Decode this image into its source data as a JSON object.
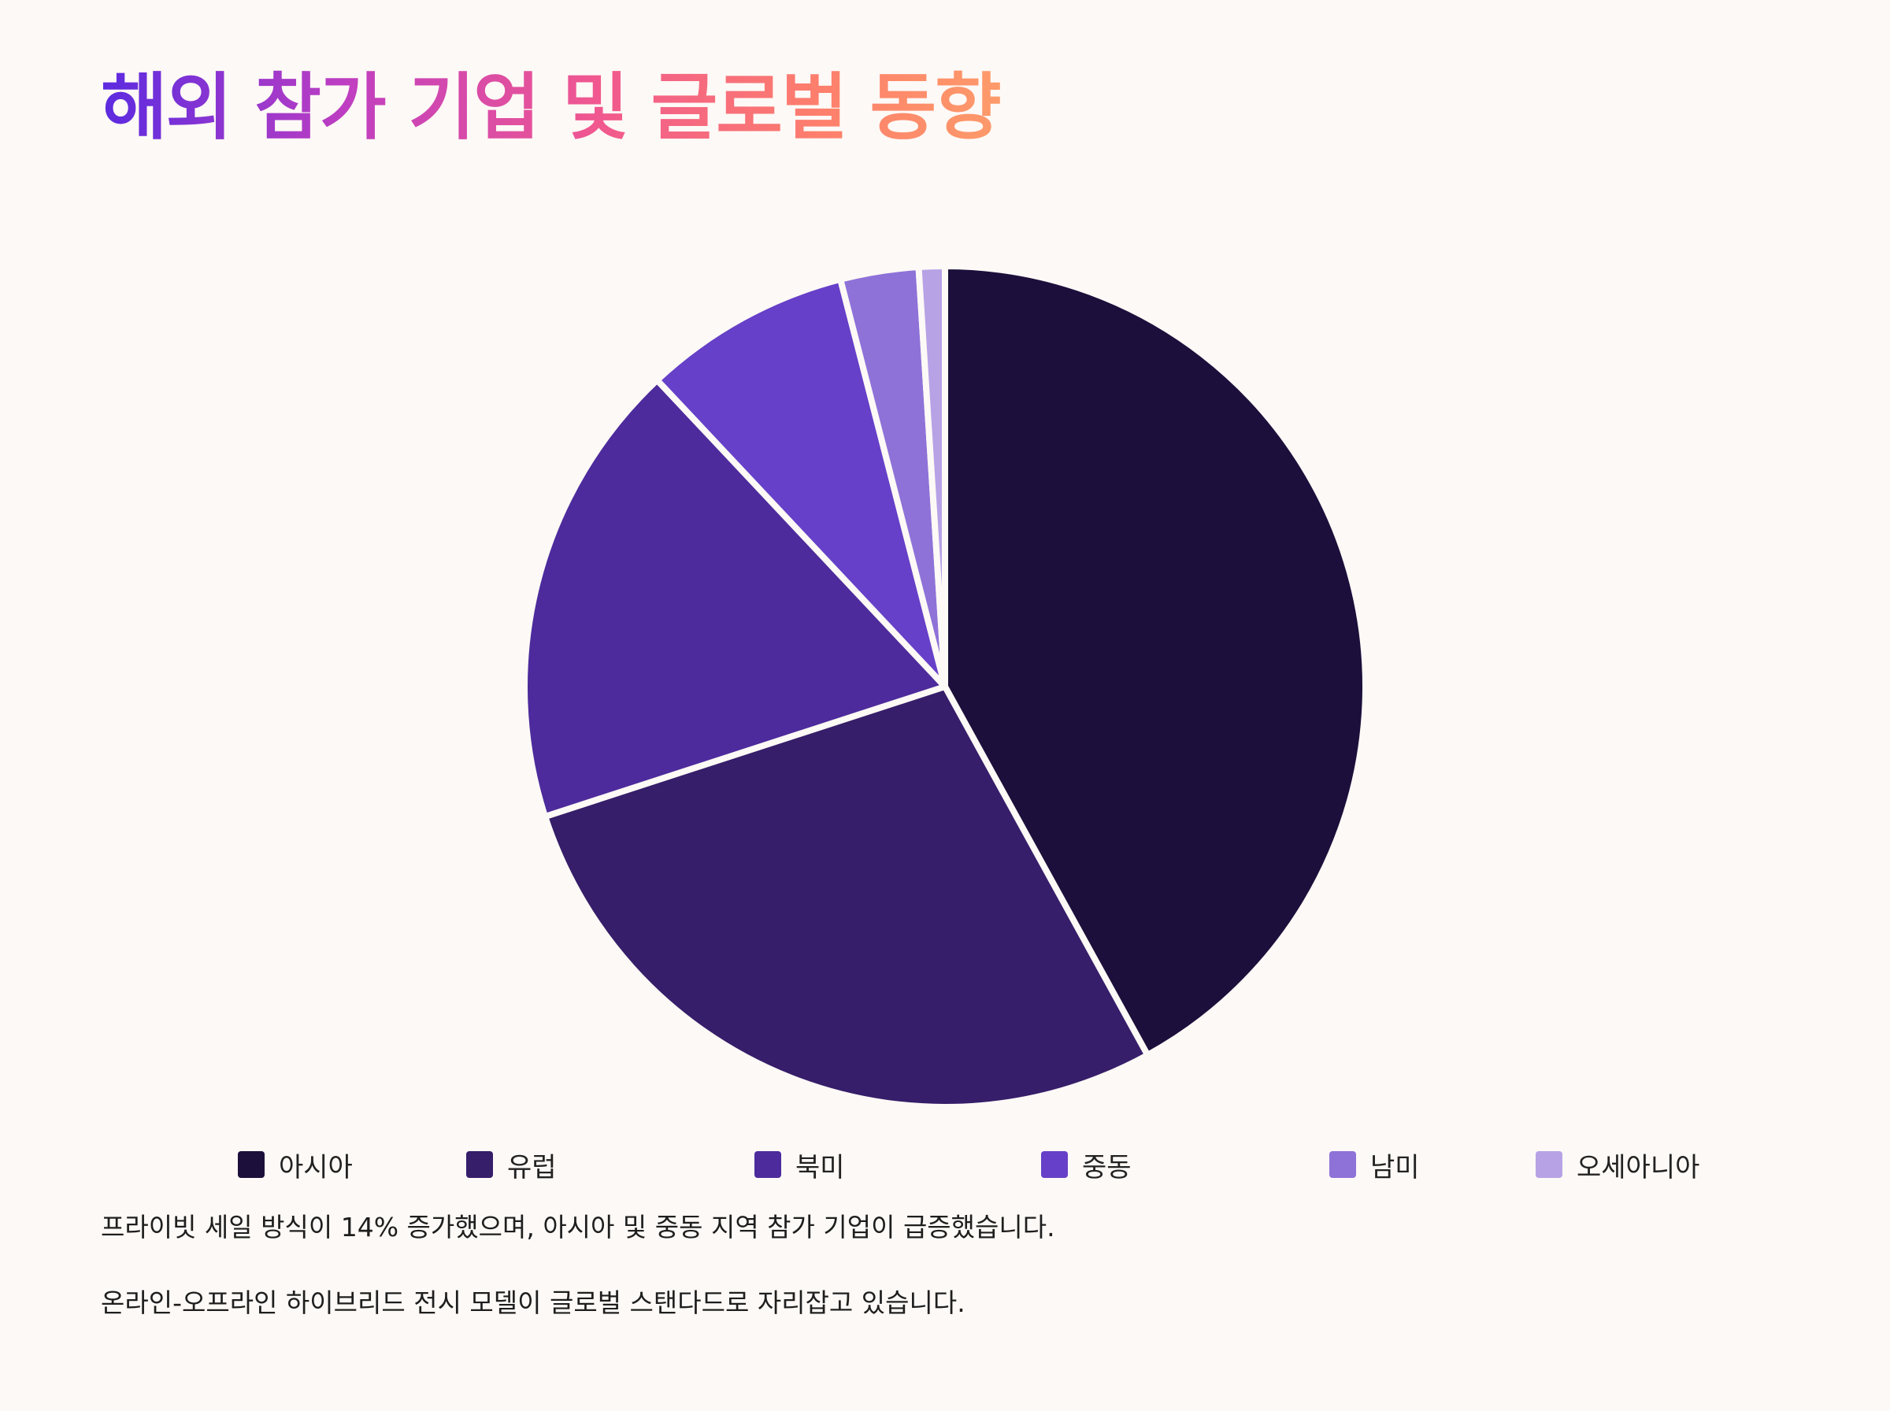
{
  "title": "해외 참가 기업 및 글로벌 동향",
  "chart_data": {
    "type": "pie",
    "categories": [
      "아시아",
      "유럽",
      "북미",
      "중동",
      "남미",
      "오세아니아"
    ],
    "values": [
      42,
      28,
      18,
      8,
      3,
      1
    ],
    "colors": [
      "#1c0f3b",
      "#361e6a",
      "#4d2b9c",
      "#6640c8",
      "#8e72d8",
      "#b7a2e6"
    ],
    "legend_position": "bottom"
  },
  "notes": [
    "프라이빗 세일 방식이 14% 증가했으며, 아시아 및 중동 지역 참가 기업이 급증했습니다.",
    "온라인-오프라인 하이브리드 전시 모델이 글로벌 스탠다드로 자리잡고 있습니다."
  ]
}
